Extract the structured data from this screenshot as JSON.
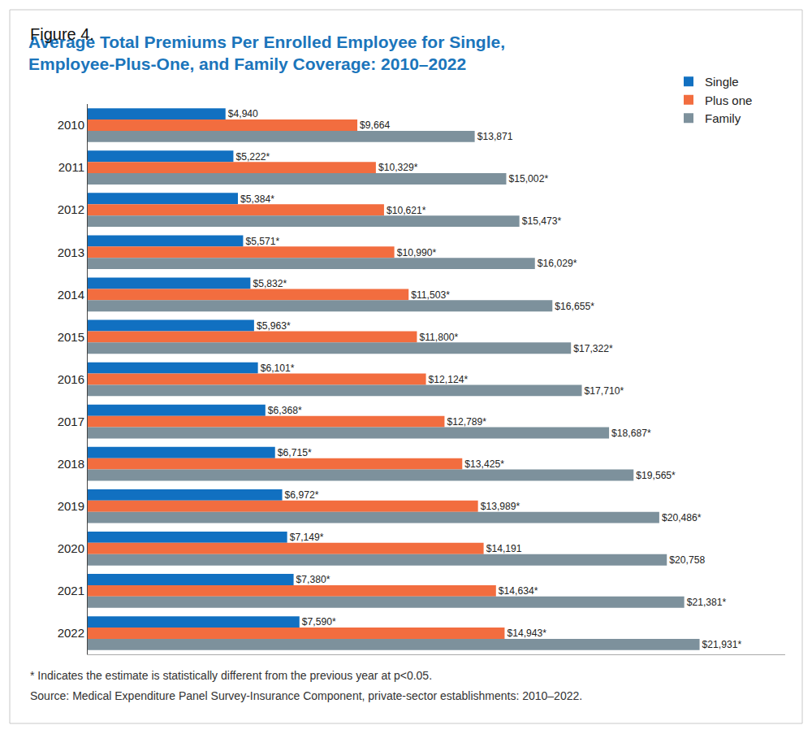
{
  "chart_data": {
    "type": "bar",
    "orientation": "horizontal",
    "title": "Average Total Premiums Per Enrolled Employee for Single, Employee-Plus-One, and Family Coverage: 2010–2022",
    "annotations": [
      "Figure 4.",
      "* Indicates the estimate is statistically different from the previous year at p<0.05.",
      "Source: Medical Expenditure Panel Survey-Insurance Component, private-sector establishments: 2010–2022."
    ],
    "categories": [
      "2010",
      "2011",
      "2012",
      "2013",
      "2014",
      "2015",
      "2016",
      "2017",
      "2018",
      "2019",
      "2020",
      "2021",
      "2022"
    ],
    "series": [
      {
        "name": "Single",
        "color": "#1170c1",
        "values": [
          4940,
          5222,
          5384,
          5571,
          5832,
          5963,
          6101,
          6368,
          6715,
          6972,
          7149,
          7380,
          7590
        ],
        "value_labels": [
          "$4,940",
          "$5,222*",
          "$5,384*",
          "$5,571*",
          "$5,832*",
          "$5,963*",
          "$6,101*",
          "$6,368*",
          "$6,715*",
          "$6,972*",
          "$7,149*",
          "$7,380*",
          "$7,590*"
        ]
      },
      {
        "name": "Plus one",
        "color": "#f26d3f",
        "values": [
          9664,
          10329,
          10621,
          10990,
          11503,
          11800,
          12124,
          12789,
          13425,
          13989,
          14191,
          14634,
          14943
        ],
        "value_labels": [
          "$9,664",
          "$10,329*",
          "$10,621*",
          "$10,990*",
          "$11,503*",
          "$11,800*",
          "$12,124*",
          "$12,789*",
          "$13,425*",
          "$13,989*",
          "$14,191",
          "$14,634*",
          "$14,943*"
        ]
      },
      {
        "name": "Family",
        "color": "#7d919c",
        "values": [
          13871,
          15002,
          15473,
          16029,
          16655,
          17322,
          17710,
          18687,
          19565,
          20486,
          20758,
          21381,
          21931
        ],
        "value_labels": [
          "$13,871",
          "$15,002*",
          "$15,473*",
          "$16,029*",
          "$16,655*",
          "$17,322*",
          "$17,710*",
          "$18,687*",
          "$19,565*",
          "$20,486*",
          "$20,758",
          "$21,381*",
          "$21,931*"
        ]
      }
    ],
    "xlim": [
      0,
      25000
    ],
    "xticks": [],
    "tick_labels": "y",
    "grid": false,
    "legend": "top right",
    "data_labels": true
  }
}
